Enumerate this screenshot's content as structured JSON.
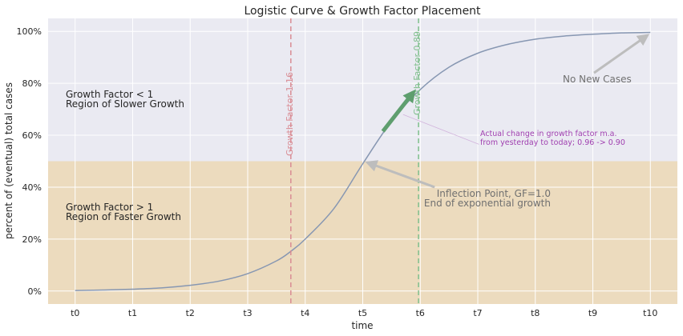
{
  "chart_data": {
    "type": "line",
    "title": "Logistic Curve & Growth Factor Placement",
    "xlabel": "time",
    "ylabel": "percent of (eventual) total cases",
    "x_ticks": [
      "t0",
      "t1",
      "t2",
      "t3",
      "t4",
      "t5",
      "t6",
      "t7",
      "t8",
      "t9",
      "t10"
    ],
    "y_ticks": [
      "0%",
      "20%",
      "40%",
      "60%",
      "80%",
      "100%"
    ],
    "xlim": [
      -0.47,
      10.47
    ],
    "ylim": [
      -5,
      105
    ],
    "grid": true,
    "series": [
      {
        "x": [
          0,
          0.5,
          1,
          1.5,
          2,
          2.5,
          3,
          3.5,
          3.75,
          4,
          4.5,
          5,
          5.5,
          6,
          6.5,
          7,
          7.5,
          8,
          8.5,
          9,
          9.5,
          10
        ],
        "y": [
          0.2,
          0.4,
          0.7,
          1.2,
          2.2,
          3.8,
          6.7,
          11.6,
          15.3,
          20.0,
          31.8,
          49.0,
          65.4,
          77.6,
          86.2,
          91.6,
          94.9,
          97.0,
          98.2,
          98.9,
          99.4,
          99.6
        ],
        "color": "#8797b2"
      }
    ],
    "regions": [
      {
        "from": 50,
        "to": 105,
        "color": "#eaeaf2",
        "label": [
          "Growth Factor < 1",
          "Region of Slower Growth"
        ]
      },
      {
        "from": -5,
        "to": 50,
        "color": "#ecdbbe",
        "label": [
          "Growth Factor > 1",
          "Region of Faster Growth"
        ]
      }
    ],
    "vlines": [
      {
        "x": 3.75,
        "label": "Growth Factor 1.16",
        "color": "#d98c94"
      },
      {
        "x": 5.97,
        "label": "Growth Factor 0.89",
        "color": "#7fbf8c"
      }
    ],
    "annotations": [
      {
        "text": [
          "No New Cases"
        ],
        "color": "#707070",
        "arrow_from": [
          9.02,
          84
        ],
        "arrow_to": [
          9.95,
          98.5
        ]
      },
      {
        "text": [
          "Inflection Point, GF=1.0",
          "End of exponential growth"
        ],
        "color": "#707070",
        "arrow_from": [
          6.25,
          40
        ],
        "arrow_to": [
          5.08,
          49.5
        ]
      },
      {
        "text": [
          "Actual change in growth factor m.a.",
          "from yesterday to today; 0.96 -> 0.90"
        ],
        "color": "#a040b0",
        "arrow_from": [
          7.02,
          56.5
        ],
        "arrow_to": [
          5.7,
          68
        ]
      }
    ],
    "slope_arrow": {
      "from": [
        5.35,
        61.5
      ],
      "to": [
        5.88,
        76.5
      ],
      "color": "#5e9e6e"
    },
    "colors": {
      "background": "#eaeaf2",
      "faster_region": "#ecdbbe",
      "grid": "#ffffff",
      "text": "#262626"
    }
  }
}
